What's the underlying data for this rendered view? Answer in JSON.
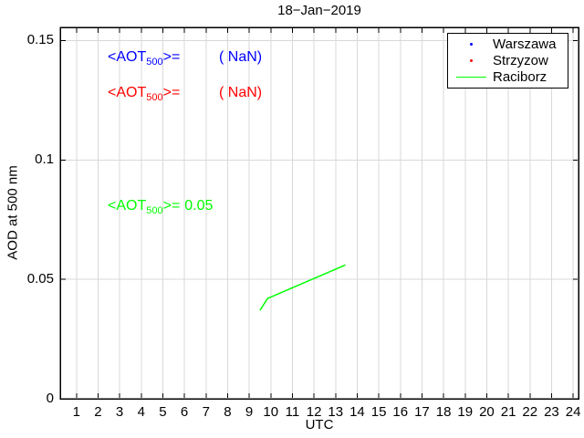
{
  "chart_data": {
    "type": "line",
    "title": "18−Jan−2019",
    "xlabel": "UTC",
    "ylabel": "AOD at 500 nm",
    "xlim": [
      0.25,
      24.25
    ],
    "ylim": [
      0,
      0.1555
    ],
    "x_ticks": [
      1,
      2,
      3,
      4,
      5,
      6,
      7,
      8,
      9,
      10,
      11,
      12,
      13,
      14,
      15,
      16,
      17,
      18,
      19,
      20,
      21,
      22,
      23,
      24
    ],
    "y_ticks": [
      {
        "value": 0,
        "label": "0"
      },
      {
        "value": 0.05,
        "label": "0.05"
      },
      {
        "value": 0.1,
        "label": "0.1"
      },
      {
        "value": 0.15,
        "label": "0.15"
      }
    ],
    "grid": true,
    "grid_color": "#d9d9d9",
    "axis_color": "#000000",
    "legend": {
      "position": "top-right",
      "entries": [
        {
          "label": "Warszawa",
          "color": "#0000ff",
          "marker": "dot"
        },
        {
          "label": "Strzyzow",
          "color": "#ff0000",
          "marker": "dot"
        },
        {
          "label": "Raciborz",
          "color": "#00ff00",
          "marker": "line"
        }
      ]
    },
    "series": [
      {
        "name": "Warszawa",
        "color": "#0000ff",
        "style": "dots",
        "points": []
      },
      {
        "name": "Strzyzow",
        "color": "#ff0000",
        "style": "dots",
        "points": []
      },
      {
        "name": "Raciborz",
        "color": "#00ff00",
        "style": "line",
        "points": [
          [
            9.5,
            0.037
          ],
          [
            9.85,
            0.042
          ],
          [
            13.45,
            0.056
          ]
        ]
      }
    ],
    "annotations": [
      {
        "series": "Warszawa",
        "color": "#0000ff",
        "prefix": "<AOT",
        "sub": "500",
        "suffix": ">=",
        "value": "( NaN)"
      },
      {
        "series": "Strzyzow",
        "color": "#ff0000",
        "prefix": "<AOT",
        "sub": "500",
        "suffix": ">=",
        "value": "( NaN)"
      },
      {
        "series": "Raciborz",
        "color": "#00ff00",
        "prefix": "<AOT",
        "sub": "500",
        "suffix": ">=",
        "value": "0.05"
      }
    ]
  }
}
